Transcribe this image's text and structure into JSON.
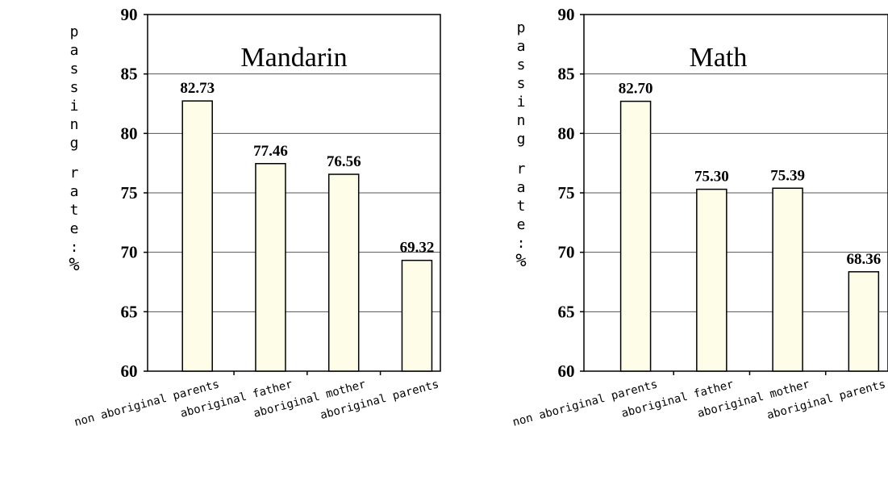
{
  "chart_data": [
    {
      "type": "bar",
      "title": "Mandarin",
      "xlabel": "",
      "ylabel": "passing rate:%",
      "categories": [
        "non aboriginal parents",
        "aboriginal father",
        "aboriginal mother",
        "aboriginal parents"
      ],
      "values": [
        82.73,
        77.46,
        76.56,
        69.32
      ],
      "value_labels": [
        "82.73",
        "77.46",
        "76.56",
        "69.32"
      ],
      "ylim": [
        60,
        90
      ],
      "yticks": [
        "60",
        "65",
        "70",
        "75",
        "80",
        "85",
        "90"
      ],
      "grid": true,
      "bar_color": "#fdfde8"
    },
    {
      "type": "bar",
      "title": "Math",
      "xlabel": "",
      "ylabel": "passing rate:%",
      "categories": [
        "non aboriginal parents",
        "aboriginal father",
        "aboriginal mother",
        "aboriginal parents"
      ],
      "values": [
        82.7,
        75.3,
        75.39,
        68.36
      ],
      "value_labels": [
        "82.70",
        "75.30",
        "75.39",
        "68.36"
      ],
      "ylim": [
        60,
        90
      ],
      "yticks": [
        "60",
        "65",
        "70",
        "75",
        "80",
        "85",
        "90"
      ],
      "grid": true,
      "bar_color": "#fdfde8"
    }
  ]
}
